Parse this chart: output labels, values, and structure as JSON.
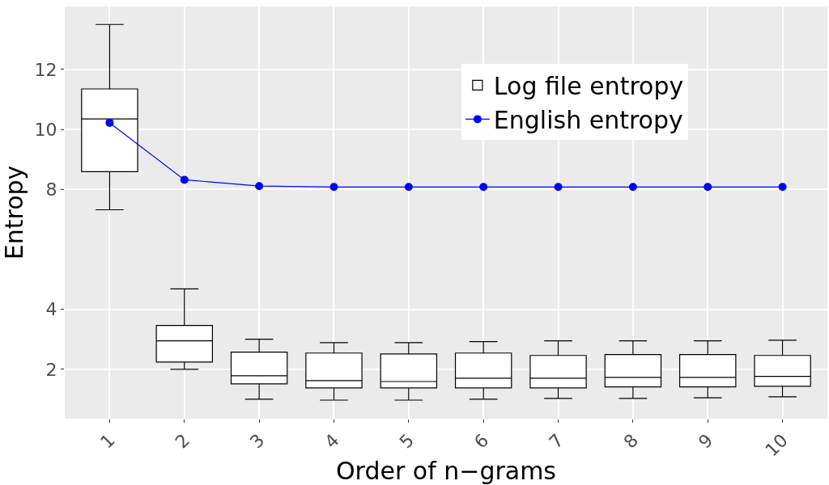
{
  "chart_data": {
    "type": "box",
    "xlabel": "Order of n−grams",
    "ylabel": "Entropy",
    "categories": [
      "1",
      "2",
      "3",
      "4",
      "5",
      "6",
      "7",
      "8",
      "9",
      "10"
    ],
    "ylim": [
      0.35,
      14.1
    ],
    "yticks": [
      2,
      4,
      8,
      10,
      12
    ],
    "grid": true,
    "legend": "top",
    "series": [
      {
        "name": "Log file entropy",
        "color": "#000000",
        "boxes": [
          {
            "low": 7.32,
            "q1": 8.59,
            "median": 10.35,
            "q3": 11.35,
            "high": 13.5
          },
          {
            "low": 2.0,
            "q1": 2.24,
            "median": 2.95,
            "q3": 3.46,
            "high": 4.68
          },
          {
            "low": 1.0,
            "q1": 1.51,
            "median": 1.78,
            "q3": 2.57,
            "high": 3.0
          },
          {
            "low": 0.97,
            "q1": 1.38,
            "median": 1.62,
            "q3": 2.54,
            "high": 2.89
          },
          {
            "low": 0.97,
            "q1": 1.38,
            "median": 1.59,
            "q3": 2.51,
            "high": 2.89
          },
          {
            "low": 1.0,
            "q1": 1.38,
            "median": 1.7,
            "q3": 2.54,
            "high": 2.92
          },
          {
            "low": 1.03,
            "q1": 1.38,
            "median": 1.7,
            "q3": 2.46,
            "high": 2.95
          },
          {
            "low": 1.03,
            "q1": 1.41,
            "median": 1.73,
            "q3": 2.49,
            "high": 2.95
          },
          {
            "low": 1.05,
            "q1": 1.41,
            "median": 1.73,
            "q3": 2.49,
            "high": 2.95
          },
          {
            "low": 1.08,
            "q1": 1.43,
            "median": 1.76,
            "q3": 2.46,
            "high": 2.97
          }
        ]
      },
      {
        "name": "English entropy",
        "type": "line",
        "color": "#0000ff",
        "marker": "circle",
        "values": [
          10.22,
          8.32,
          8.11,
          8.08,
          8.08,
          8.08,
          8.08,
          8.08,
          8.08,
          8.08
        ]
      }
    ]
  }
}
